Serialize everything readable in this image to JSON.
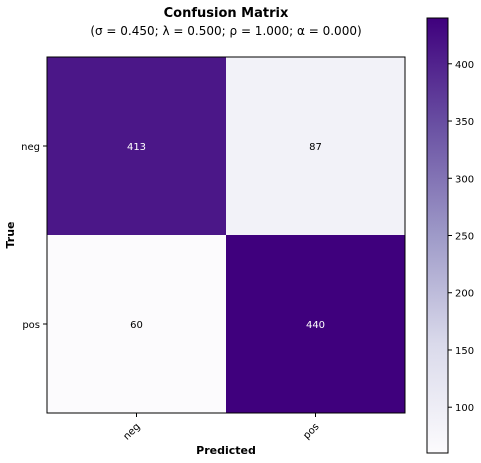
{
  "chart_data": {
    "type": "heatmap",
    "title": "Confusion Matrix",
    "subtitle": "(σ = 0.450; λ = 0.500; ρ = 1.000; α = 0.000)",
    "xlabel": "Predicted",
    "ylabel": "True",
    "x_categories": [
      "neg",
      "pos"
    ],
    "y_categories": [
      "neg",
      "pos"
    ],
    "matrix": [
      [
        413,
        87
      ],
      [
        60,
        440
      ]
    ],
    "colormap": "Purples",
    "color_low": "#fcfbfd",
    "color_high": "#3f007d",
    "colorbar": {
      "range": [
        60,
        440
      ],
      "ticks": [
        100,
        150,
        200,
        250,
        300,
        350,
        400
      ]
    }
  }
}
